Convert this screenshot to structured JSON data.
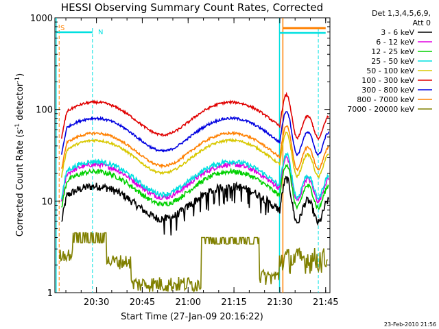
{
  "chart_data": {
    "type": "line",
    "title": "HESSI Observing Summary Count Rates, Corrected",
    "xlabel": "Start Time (27-Jan-09 20:16:22)",
    "ylabel": "Corrected Count Rate (s",
    "ylabel_sup1": "-1",
    "ylabel_mid": " detector",
    "ylabel_sup2": "-1",
    "ylabel_end": ")",
    "yscale": "log",
    "ylim": [
      1,
      1000
    ],
    "xlim_minutes": [
      0,
      90
    ],
    "x_ticks": [
      {
        "label": "20:30",
        "minute": 13.6
      },
      {
        "label": "20:45",
        "minute": 28.6
      },
      {
        "label": "21:00",
        "minute": 43.6
      },
      {
        "label": "21:15",
        "minute": 58.6
      },
      {
        "label": "21:30",
        "minute": 73.6
      },
      {
        "label": "21:45",
        "minute": 88.6
      }
    ],
    "y_ticks": [
      {
        "label": "1",
        "value": 1
      },
      {
        "label": "10",
        "value": 10
      },
      {
        "label": "100",
        "value": 100
      },
      {
        "label": "1000",
        "value": 1000
      }
    ],
    "legend_header": [
      "Det 1,3,4,5,6,9,",
      "Att 0"
    ],
    "legend_placement": "right",
    "annotations": {
      "saa_label": "S",
      "night_label": "N",
      "footer_date": "23-Feb-2010 21:56"
    },
    "series": [
      {
        "name": "3 - 6 keV",
        "color": "#000000",
        "scale": 14.5,
        "noise": 0.1,
        "dropout": 0.15
      },
      {
        "name": "6 - 12 keV",
        "color": "#e000e0",
        "scale": 25,
        "noise": 0.06,
        "dropout": 0
      },
      {
        "name": "12 - 25 keV",
        "color": "#00d000",
        "scale": 21,
        "noise": 0.06,
        "dropout": 0
      },
      {
        "name": "25 - 50 keV",
        "color": "#00e0e0",
        "scale": 27,
        "noise": 0.06,
        "dropout": 0
      },
      {
        "name": "50 - 100 keV",
        "color": "#d8c800",
        "scale": 46,
        "noise": 0.03,
        "dropout": 0
      },
      {
        "name": "100 - 300 keV",
        "color": "#e00000",
        "scale": 120,
        "noise": 0.03,
        "dropout": 0
      },
      {
        "name": "300 - 800 keV",
        "color": "#0000e0",
        "scale": 80,
        "noise": 0.03,
        "dropout": 0
      },
      {
        "name": "800 - 7000 keV",
        "color": "#ff8000",
        "scale": 55,
        "noise": 0.03,
        "dropout": 0
      },
      {
        "name": "7000 - 20000 keV",
        "color": "#808000",
        "scale": 3,
        "noise": 0.0,
        "dropout": 0
      }
    ]
  }
}
